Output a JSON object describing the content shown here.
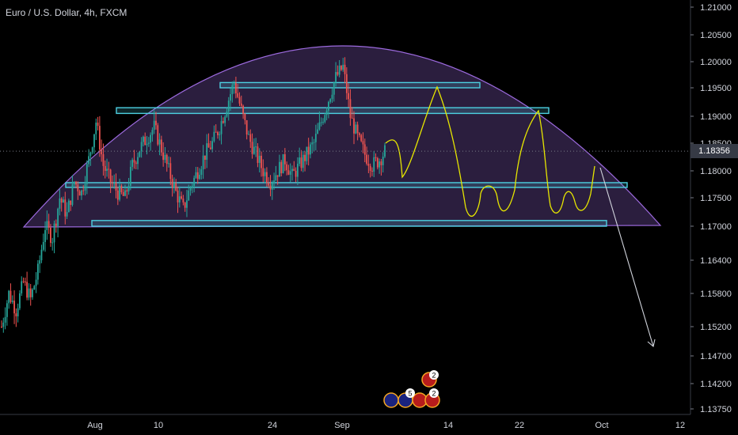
{
  "chart_data": {
    "type": "candlestick",
    "title": "Euro / U.S. Dollar, 4h, FXCM",
    "current_price": "1.18356",
    "ylim": [
      1.1365,
      1.2125
    ],
    "y_ticks": [
      "1.21000",
      "1.20500",
      "1.20000",
      "1.19500",
      "1.19000",
      "1.18500",
      "1.18000",
      "1.17500",
      "1.17000",
      "1.16400",
      "1.15800",
      "1.15200",
      "1.14700",
      "1.14200",
      "1.13750"
    ],
    "x_ticks": [
      "Aug",
      "10",
      "24",
      "Sep",
      "14",
      "22",
      "Oct",
      "12"
    ],
    "colors": {
      "up": "#26a69a",
      "down": "#ef5350",
      "zone": "#4dd0e1",
      "arc": "#9c6ade",
      "projection": "#e6e600",
      "arrow": "#d1d4dc"
    },
    "price_path": [
      1.152,
      1.158,
      1.155,
      1.16,
      1.157,
      1.162,
      1.17,
      1.168,
      1.175,
      1.172,
      1.178,
      1.176,
      1.182,
      1.189,
      1.181,
      1.178,
      1.176,
      1.175,
      1.181,
      1.184,
      1.186,
      1.188,
      1.184,
      1.18,
      1.176,
      1.173,
      1.177,
      1.18,
      1.183,
      1.185,
      1.188,
      1.192,
      1.196,
      1.191,
      1.186,
      1.183,
      1.18,
      1.178,
      1.18,
      1.182,
      1.179,
      1.181,
      1.183,
      1.185,
      1.189,
      1.193,
      1.197,
      1.199,
      1.19,
      1.186,
      1.183,
      1.181,
      1.182,
      1.184
    ],
    "zones": [
      {
        "from": "10",
        "to": "Oct",
        "low": 1.1905,
        "high": 1.1915
      },
      {
        "from": "24",
        "to": "14",
        "low": 1.195,
        "high": 1.196
      },
      {
        "from": "Aug",
        "to": "Oct",
        "low": 1.177,
        "high": 1.1778
      },
      {
        "from": "Aug",
        "to": "Oct",
        "low": 1.17,
        "high": 1.171
      }
    ],
    "event_badges": [
      {
        "label": "2"
      },
      {
        "label": "5"
      },
      {
        "label": "2"
      }
    ]
  }
}
